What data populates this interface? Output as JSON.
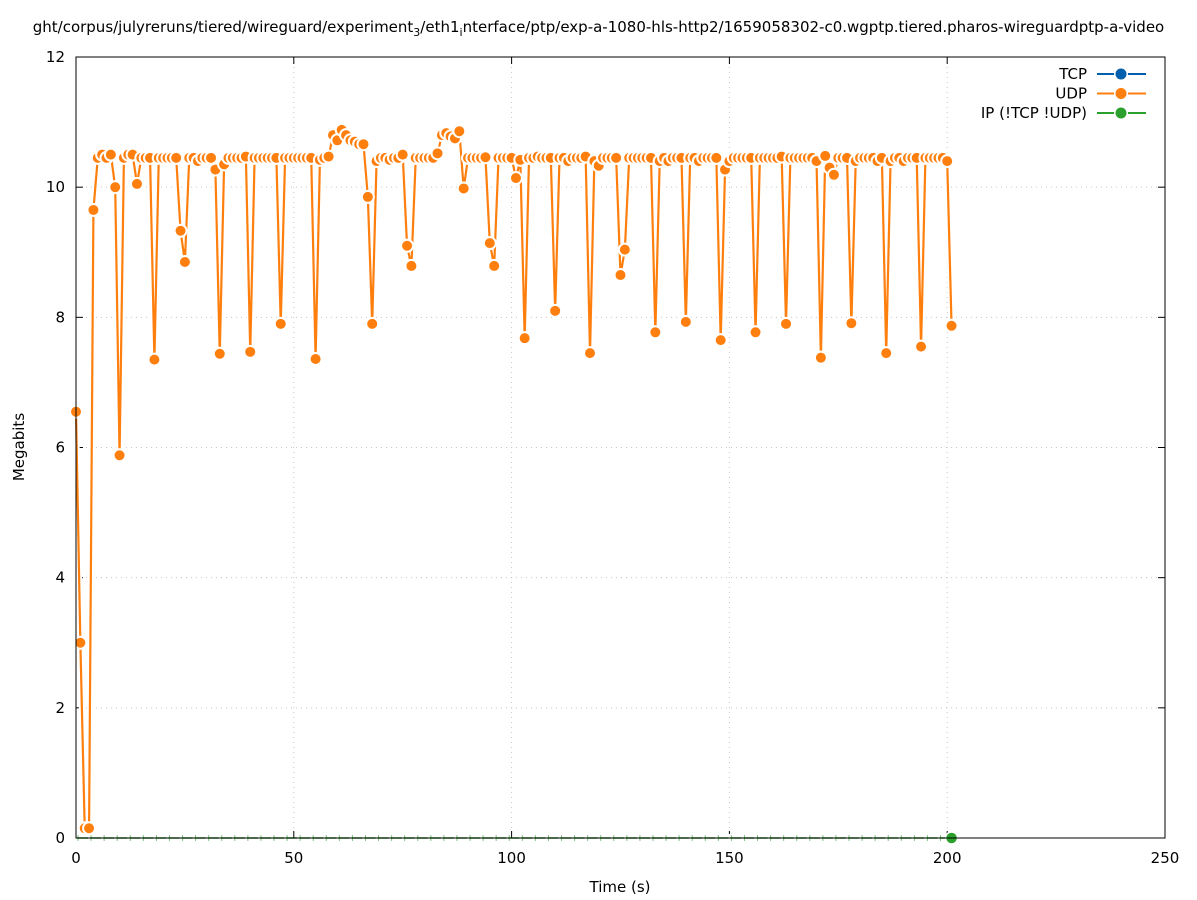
{
  "chart_data": {
    "type": "line",
    "title_parts": [
      "ght/corpus/julyreruns/tiered/wireguard/experiment",
      "3",
      "/eth1",
      "i",
      "nterface/ptp/exp-a-1080-hls-http2/1659058302-c0.wgptp.tiered.pharos-wireguardptp-a-video"
    ],
    "xlabel": "Time (s)",
    "ylabel": "Megabits",
    "xlim": [
      0,
      250
    ],
    "ylim": [
      0,
      12
    ],
    "xticks": [
      0,
      50,
      100,
      150,
      200,
      250
    ],
    "yticks": [
      0,
      2,
      4,
      6,
      8,
      10,
      12
    ],
    "grid": true,
    "legend_position": "top-right",
    "series": [
      {
        "name": "TCP",
        "color": "#0060ad",
        "x": [],
        "y": []
      },
      {
        "name": "UDP",
        "color": "#ff7f0e",
        "x": [
          0,
          1,
          2,
          3,
          4,
          5,
          6,
          7,
          8,
          9,
          10,
          11,
          12,
          13,
          14,
          15,
          16,
          17,
          18,
          19,
          20,
          21,
          22,
          23,
          24,
          25,
          26,
          27,
          28,
          29,
          30,
          31,
          32,
          33,
          34,
          35,
          36,
          37,
          38,
          39,
          40,
          41,
          42,
          43,
          44,
          45,
          46,
          47,
          48,
          49,
          50,
          51,
          52,
          53,
          54,
          55,
          56,
          57,
          58,
          59,
          60,
          61,
          62,
          63,
          64,
          65,
          66,
          67,
          68,
          69,
          70,
          71,
          72,
          73,
          74,
          75,
          76,
          77,
          78,
          79,
          80,
          81,
          82,
          83,
          84,
          85,
          86,
          87,
          88,
          89,
          90,
          91,
          92,
          93,
          94,
          95,
          96,
          97,
          98,
          99,
          100,
          101,
          102,
          103,
          104,
          105,
          106,
          107,
          108,
          109,
          110,
          111,
          112,
          113,
          114,
          115,
          116,
          117,
          118,
          119,
          120,
          121,
          122,
          123,
          124,
          125,
          126,
          127,
          128,
          129,
          130,
          131,
          132,
          133,
          134,
          135,
          136,
          137,
          138,
          139,
          140,
          141,
          142,
          143,
          144,
          145,
          146,
          147,
          148,
          149,
          150,
          151,
          152,
          153,
          154,
          155,
          156,
          157,
          158,
          159,
          160,
          161,
          162,
          163,
          164,
          165,
          166,
          167,
          168,
          169,
          170,
          171,
          172,
          173,
          174,
          175,
          176,
          177,
          178,
          179,
          180,
          181,
          182,
          183,
          184,
          185,
          186,
          187,
          188,
          189,
          190,
          191,
          192,
          193,
          194,
          195,
          196,
          197,
          198,
          199,
          200,
          201
        ],
        "y": [
          6.55,
          3.0,
          0.15,
          0.15,
          9.65,
          10.45,
          10.5,
          10.45,
          10.5,
          10.0,
          5.88,
          10.45,
          10.5,
          10.5,
          10.05,
          10.45,
          10.45,
          10.45,
          7.35,
          10.45,
          10.45,
          10.45,
          10.45,
          10.45,
          9.33,
          8.85,
          10.45,
          10.45,
          10.4,
          10.45,
          10.45,
          10.45,
          10.27,
          7.44,
          10.35,
          10.45,
          10.45,
          10.45,
          10.45,
          10.47,
          7.47,
          10.45,
          10.45,
          10.45,
          10.45,
          10.45,
          10.45,
          7.9,
          10.45,
          10.45,
          10.45,
          10.45,
          10.45,
          10.45,
          10.45,
          7.36,
          10.42,
          10.45,
          10.47,
          10.8,
          10.72,
          10.88,
          10.8,
          10.72,
          10.7,
          10.66,
          10.66,
          9.85,
          7.9,
          10.4,
          10.45,
          10.45,
          10.42,
          10.45,
          10.45,
          10.5,
          9.1,
          8.79,
          10.45,
          10.45,
          10.45,
          10.45,
          10.45,
          10.52,
          10.8,
          10.83,
          10.78,
          10.75,
          10.86,
          9.98,
          10.45,
          10.45,
          10.45,
          10.45,
          10.46,
          9.14,
          8.79,
          10.45,
          10.45,
          10.45,
          10.45,
          10.14,
          10.42,
          7.68,
          10.45,
          10.45,
          10.47,
          10.45,
          10.45,
          10.45,
          8.1,
          10.45,
          10.45,
          10.4,
          10.45,
          10.45,
          10.45,
          10.47,
          7.45,
          10.4,
          10.33,
          10.45,
          10.45,
          10.45,
          10.45,
          8.65,
          9.04,
          10.45,
          10.45,
          10.45,
          10.45,
          10.45,
          10.45,
          7.77,
          10.4,
          10.45,
          10.4,
          10.45,
          10.45,
          10.45,
          7.93,
          10.45,
          10.45,
          10.4,
          10.45,
          10.45,
          10.45,
          10.45,
          7.65,
          10.27,
          10.4,
          10.45,
          10.45,
          10.45,
          10.45,
          10.45,
          7.77,
          10.45,
          10.45,
          10.45,
          10.45,
          10.45,
          10.47,
          7.9,
          10.45,
          10.45,
          10.45,
          10.45,
          10.45,
          10.45,
          10.4,
          7.38,
          10.48,
          10.3,
          10.19,
          10.45,
          10.45,
          10.45,
          7.91,
          10.4,
          10.45,
          10.45,
          10.45,
          10.45,
          10.4,
          10.45,
          7.45,
          10.4,
          10.45,
          10.45,
          10.4,
          10.45,
          10.45,
          10.45,
          7.55,
          10.45,
          10.45,
          10.45,
          10.45,
          10.45,
          10.4,
          7.87
        ]
      },
      {
        "name": "IP (!TCP  !UDP)",
        "color": "#2ca02c",
        "x": [
          0,
          3,
          6,
          9,
          12,
          15,
          18,
          21,
          24,
          27,
          30,
          33,
          36,
          39,
          42,
          45,
          48,
          51,
          54,
          57,
          60,
          63,
          66,
          69,
          72,
          75,
          78,
          81,
          84,
          87,
          90,
          93,
          96,
          99,
          102,
          105,
          108,
          111,
          114,
          117,
          120,
          123,
          126,
          129,
          132,
          135,
          138,
          141,
          144,
          147,
          150,
          153,
          156,
          159,
          162,
          165,
          168,
          171,
          174,
          177,
          180,
          183,
          186,
          189,
          192,
          195,
          198,
          201
        ],
        "y": [
          0,
          0,
          0,
          0,
          0,
          0,
          0,
          0,
          0,
          0,
          0,
          0,
          0,
          0,
          0,
          0,
          0,
          0,
          0,
          0,
          0,
          0,
          0,
          0,
          0,
          0,
          0,
          0,
          0,
          0,
          0,
          0,
          0,
          0,
          0,
          0,
          0,
          0,
          0,
          0,
          0,
          0,
          0,
          0,
          0,
          0,
          0,
          0,
          0,
          0,
          0,
          0,
          0,
          0,
          0,
          0,
          0,
          0,
          0,
          0,
          0,
          0,
          0,
          0,
          0,
          0,
          0,
          0
        ]
      }
    ]
  }
}
